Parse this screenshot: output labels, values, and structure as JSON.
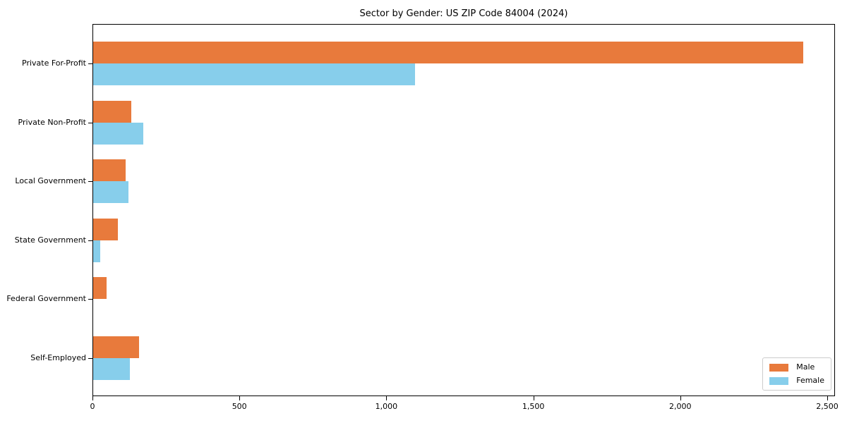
{
  "chart_data": {
    "type": "bar",
    "orientation": "horizontal",
    "title": "Sector by Gender: US ZIP Code 84004 (2024)",
    "categories": [
      "Private For-Profit",
      "Private Non-Profit",
      "Local Government",
      "State Government",
      "Federal Government",
      "Self-Employed"
    ],
    "series": [
      {
        "name": "Male",
        "color": "#e87a3c",
        "values": [
          2415,
          130,
          110,
          85,
          45,
          155
        ]
      },
      {
        "name": "Female",
        "color": "#87ceeb",
        "values": [
          1095,
          170,
          120,
          25,
          0,
          125
        ]
      }
    ],
    "xlabel": "",
    "ylabel": "",
    "x_ticks": [
      0,
      500,
      1000,
      1500,
      2000,
      2500
    ],
    "x_tick_labels": [
      "0",
      "500",
      "1,000",
      "1,500",
      "2,000",
      "2,500"
    ],
    "xlim": [
      0,
      2525
    ],
    "grid": false,
    "legend": {
      "position": "lower right",
      "entries": [
        "Male",
        "Female"
      ]
    },
    "colors": {
      "axis": "#000000",
      "legend_border": "#cccccc",
      "background": "#ffffff"
    }
  }
}
